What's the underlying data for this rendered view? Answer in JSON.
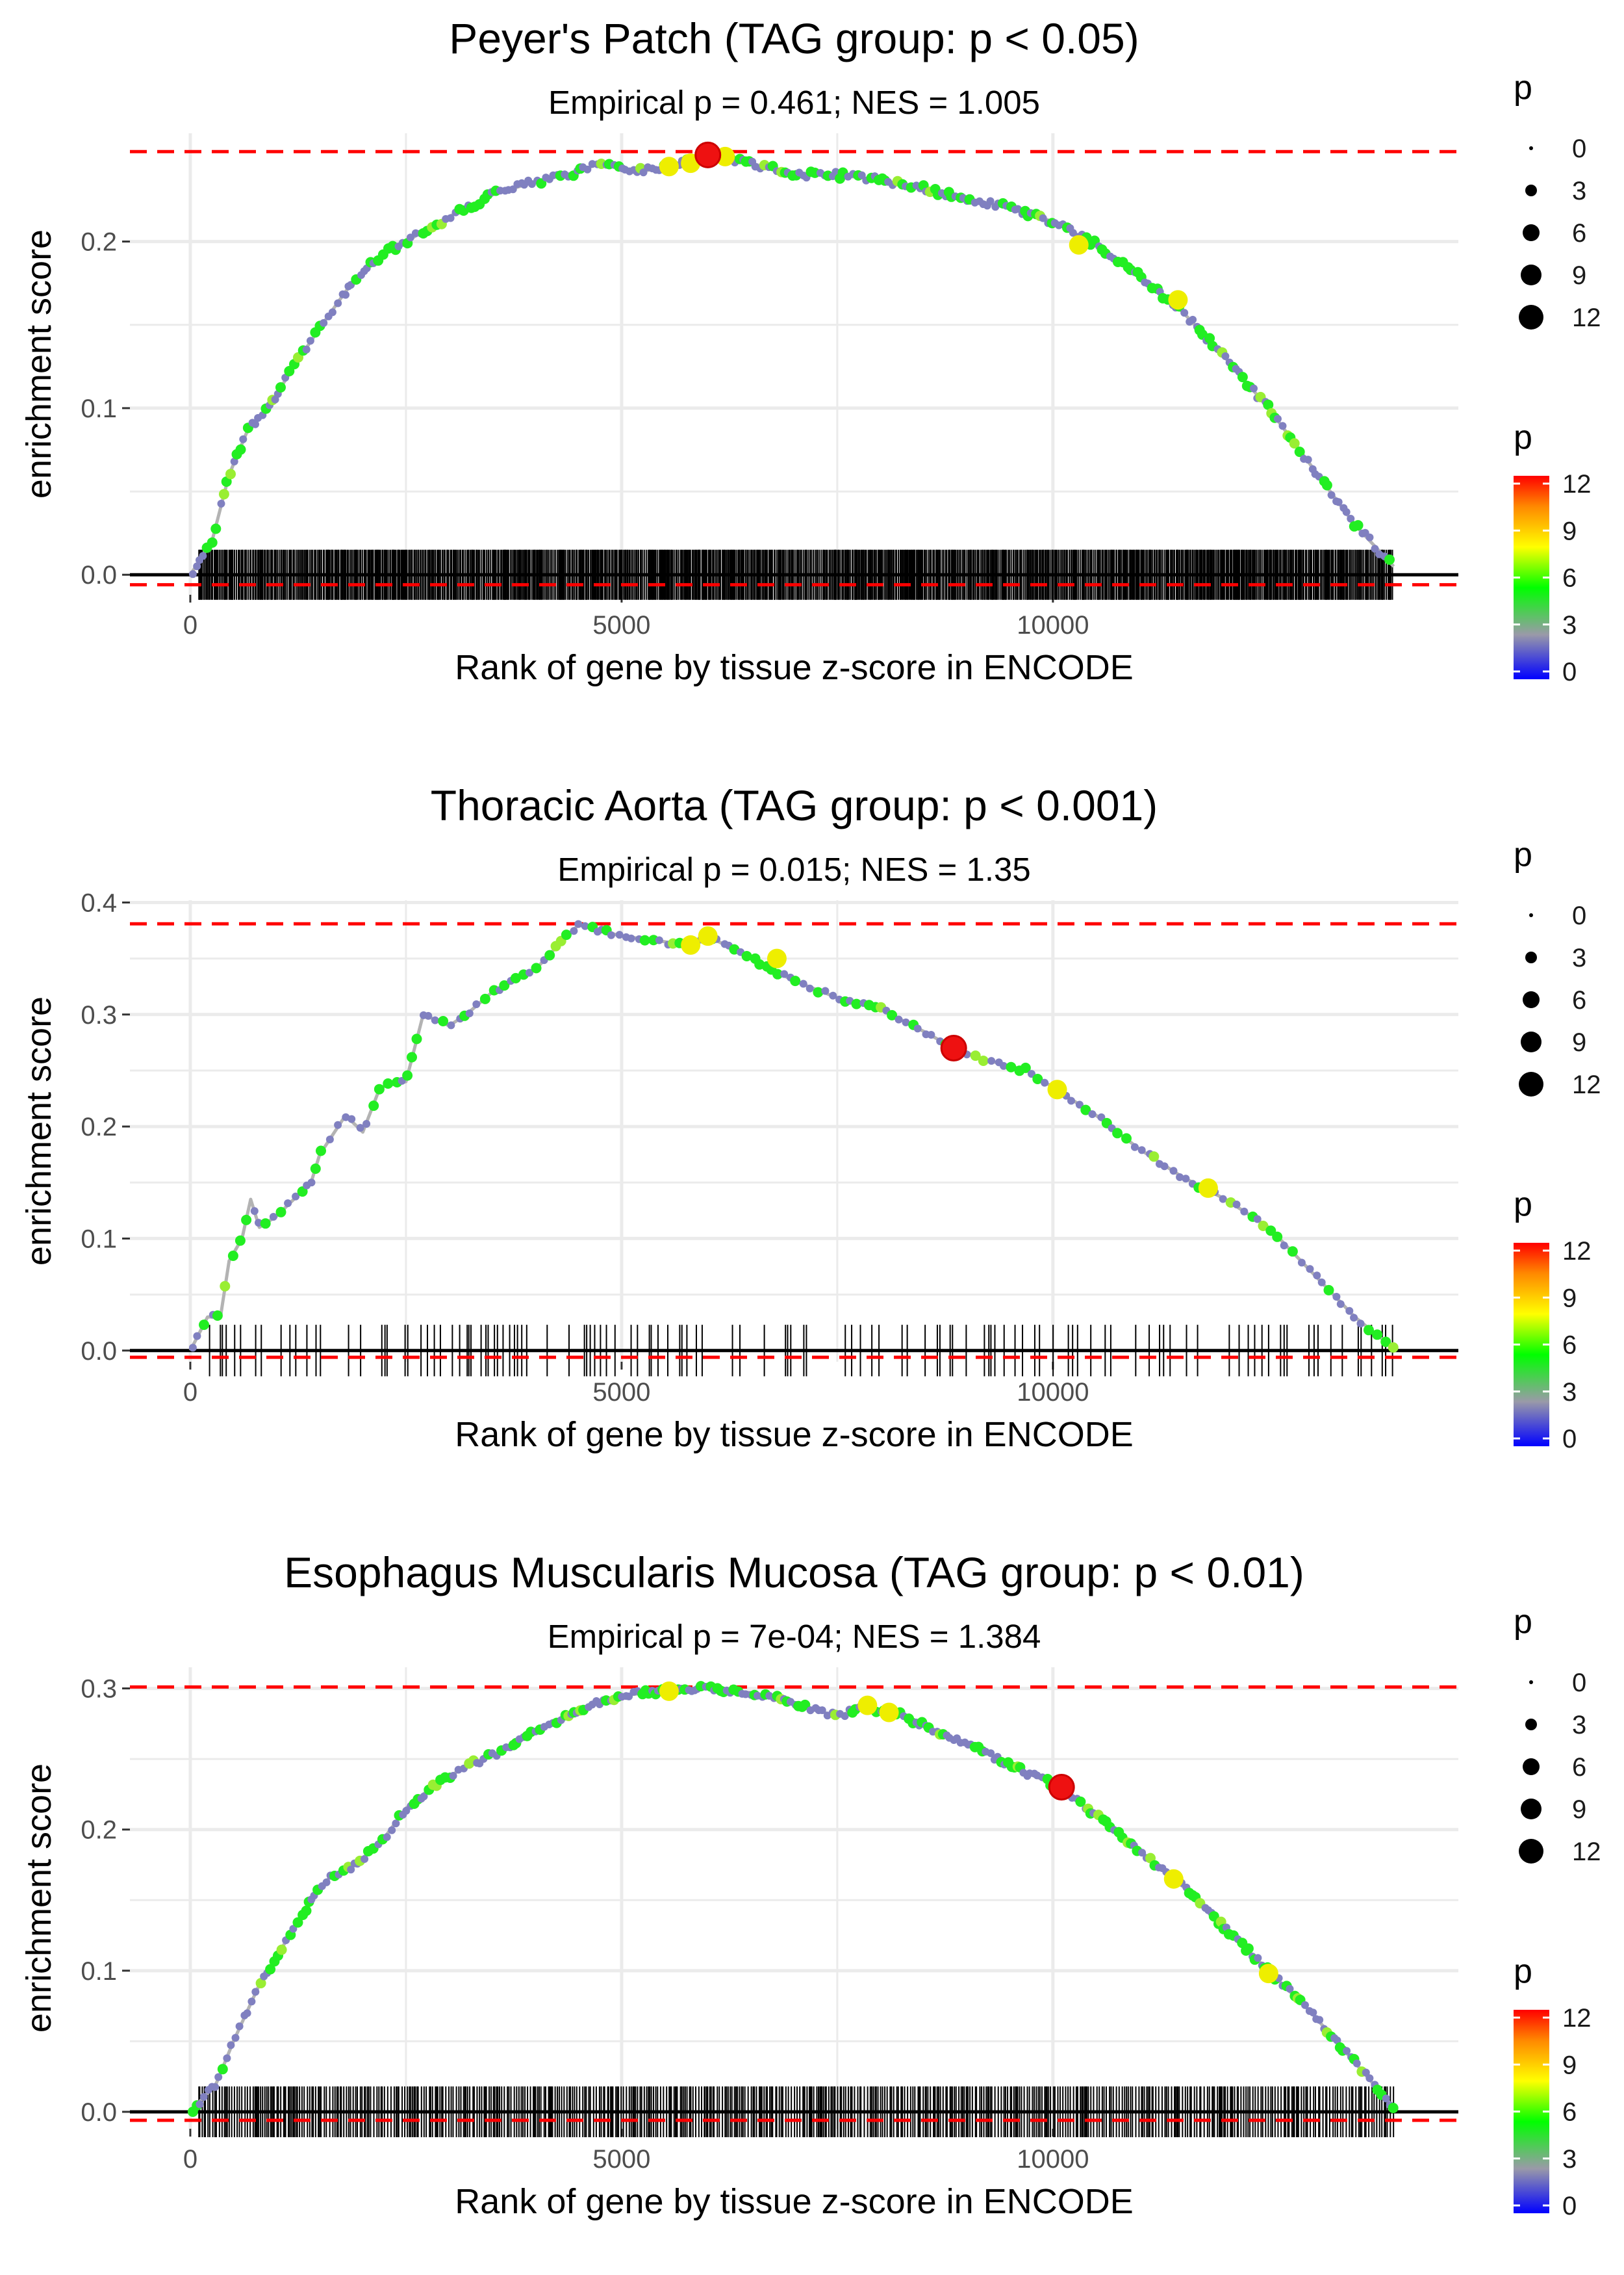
{
  "chart_data": [
    {
      "type": "line",
      "title": "Peyer's Patch (TAG group: p < 0.05)",
      "subtitle": "Empirical p = 0.461; NES = 1.005",
      "xlabel": "Rank of gene by tissue z-score in ENCODE",
      "ylabel": "enrichment score",
      "xlim": [
        -700,
        14700
      ],
      "ylim": [
        -0.012,
        0.265
      ],
      "xticks": [
        0,
        5000,
        10000
      ],
      "xtick_labels": [
        "0",
        "5000",
        "10000"
      ],
      "yticks": [
        0.0,
        0.1,
        0.2
      ],
      "ytick_labels": [
        "0.0",
        "0.1",
        "0.2"
      ],
      "hlines": [
        0.254,
        -0.006
      ],
      "rug": {
        "y_bottom": -0.015,
        "y_top": 0.015,
        "x_start": 100,
        "x_end": 13950,
        "density": "very dense"
      },
      "curve": [
        [
          0,
          0
        ],
        [
          250,
          0.02
        ],
        [
          450,
          0.06
        ],
        [
          650,
          0.085
        ],
        [
          900,
          0.1
        ],
        [
          1200,
          0.125
        ],
        [
          1500,
          0.148
        ],
        [
          1800,
          0.17
        ],
        [
          2100,
          0.188
        ],
        [
          2500,
          0.2
        ],
        [
          3000,
          0.215
        ],
        [
          3500,
          0.228
        ],
        [
          4000,
          0.236
        ],
        [
          4500,
          0.242
        ],
        [
          4750,
          0.247
        ],
        [
          5200,
          0.242
        ],
        [
          5600,
          0.245
        ],
        [
          6000,
          0.252
        ],
        [
          6500,
          0.247
        ],
        [
          7000,
          0.24
        ],
        [
          7500,
          0.24
        ],
        [
          8000,
          0.237
        ],
        [
          8500,
          0.232
        ],
        [
          9000,
          0.226
        ],
        [
          9500,
          0.22
        ],
        [
          10000,
          0.212
        ],
        [
          10500,
          0.198
        ],
        [
          11000,
          0.18
        ],
        [
          11500,
          0.158
        ],
        [
          12000,
          0.13
        ],
        [
          12500,
          0.1
        ],
        [
          13000,
          0.065
        ],
        [
          13500,
          0.03
        ],
        [
          13950,
          0.005
        ]
      ],
      "max_point": {
        "x": 6000,
        "y": 0.252,
        "p": 12
      },
      "yellow_points": [
        [
          5550,
          0.245
        ],
        [
          5800,
          0.247
        ],
        [
          6200,
          0.251
        ],
        [
          10300,
          0.198
        ],
        [
          11450,
          0.165
        ]
      ],
      "legend": {
        "title": "p",
        "sizes": [
          "0",
          "3",
          "6",
          "9",
          "12"
        ],
        "colorbar_labels": [
          "12",
          "9",
          "6",
          "3",
          "0"
        ]
      }
    },
    {
      "type": "line",
      "title": "Thoracic Aorta (TAG group: p < 0.001)",
      "subtitle": "Empirical p = 0.015; NES = 1.35",
      "xlabel": "Rank of gene by tissue z-score in ENCODE",
      "ylabel": "enrichment score",
      "xlim": [
        -700,
        14700
      ],
      "ylim": [
        -0.01,
        0.402
      ],
      "xticks": [
        0,
        5000,
        10000
      ],
      "xtick_labels": [
        "0",
        "5000",
        "10000"
      ],
      "yticks": [
        0.0,
        0.1,
        0.2,
        0.3,
        0.4
      ],
      "ytick_labels": [
        "0.0",
        "0.1",
        "0.2",
        "0.3",
        "0.4"
      ],
      "hlines": [
        0.381,
        -0.006
      ],
      "rug": {
        "y_bottom": -0.023,
        "y_top": 0.023,
        "x_start": 100,
        "x_end": 13950,
        "density": "sparse"
      },
      "curve": [
        [
          0,
          0
        ],
        [
          200,
          0.03
        ],
        [
          350,
          0.03
        ],
        [
          450,
          0.08
        ],
        [
          600,
          0.1
        ],
        [
          700,
          0.135
        ],
        [
          800,
          0.11
        ],
        [
          1000,
          0.12
        ],
        [
          1200,
          0.135
        ],
        [
          1400,
          0.15
        ],
        [
          1500,
          0.175
        ],
        [
          1800,
          0.21
        ],
        [
          2000,
          0.195
        ],
        [
          2200,
          0.235
        ],
        [
          2500,
          0.24
        ],
        [
          2700,
          0.3
        ],
        [
          3000,
          0.29
        ],
        [
          3200,
          0.3
        ],
        [
          3500,
          0.32
        ],
        [
          4000,
          0.34
        ],
        [
          4300,
          0.365
        ],
        [
          4500,
          0.38
        ],
        [
          5000,
          0.37
        ],
        [
          5500,
          0.365
        ],
        [
          5800,
          0.36
        ],
        [
          6000,
          0.37
        ],
        [
          6500,
          0.35
        ],
        [
          7000,
          0.33
        ],
        [
          7500,
          0.315
        ],
        [
          8000,
          0.305
        ],
        [
          8500,
          0.285
        ],
        [
          8850,
          0.27
        ],
        [
          9200,
          0.26
        ],
        [
          9700,
          0.25
        ],
        [
          10000,
          0.235
        ],
        [
          10500,
          0.21
        ],
        [
          11000,
          0.18
        ],
        [
          11500,
          0.155
        ],
        [
          12000,
          0.135
        ],
        [
          12500,
          0.11
        ],
        [
          13000,
          0.07
        ],
        [
          13500,
          0.03
        ],
        [
          13950,
          0.002
        ]
      ],
      "max_point": {
        "x": 8850,
        "y": 0.27,
        "p": 12
      },
      "yellow_points": [
        [
          5800,
          0.362
        ],
        [
          6000,
          0.37
        ],
        [
          6800,
          0.35
        ],
        [
          10050,
          0.233
        ],
        [
          11800,
          0.145
        ]
      ],
      "legend": {
        "title": "p",
        "sizes": [
          "0",
          "3",
          "6",
          "9",
          "12"
        ],
        "colorbar_labels": [
          "12",
          "9",
          "6",
          "3",
          "0"
        ]
      }
    },
    {
      "type": "line",
      "title": "Esophagus Muscularis Mucosa (TAG group: p < 0.01)",
      "subtitle": "Empirical p = 7e-04; NES = 1.384",
      "xlabel": "Rank of gene by tissue z-score in ENCODE",
      "ylabel": "enrichment score",
      "xlim": [
        -700,
        14700
      ],
      "ylim": [
        -0.012,
        0.315
      ],
      "xticks": [
        0,
        5000,
        10000
      ],
      "xtick_labels": [
        "0",
        "5000",
        "10000"
      ],
      "yticks": [
        0.0,
        0.1,
        0.2,
        0.3
      ],
      "ytick_labels": [
        "0.0",
        "0.1",
        "0.2",
        "0.3"
      ],
      "hlines": [
        0.301,
        -0.006
      ],
      "rug": {
        "y_bottom": -0.018,
        "y_top": 0.018,
        "x_start": 100,
        "x_end": 13950,
        "density": "dense"
      },
      "curve": [
        [
          0,
          0
        ],
        [
          300,
          0.02
        ],
        [
          500,
          0.05
        ],
        [
          800,
          0.09
        ],
        [
          1100,
          0.12
        ],
        [
          1400,
          0.15
        ],
        [
          1600,
          0.165
        ],
        [
          1800,
          0.17
        ],
        [
          2000,
          0.18
        ],
        [
          2200,
          0.19
        ],
        [
          2500,
          0.215
        ],
        [
          2800,
          0.23
        ],
        [
          3200,
          0.245
        ],
        [
          3600,
          0.255
        ],
        [
          4000,
          0.27
        ],
        [
          4500,
          0.285
        ],
        [
          5000,
          0.295
        ],
        [
          5500,
          0.298
        ],
        [
          6000,
          0.3
        ],
        [
          6500,
          0.297
        ],
        [
          7000,
          0.29
        ],
        [
          7500,
          0.28
        ],
        [
          7800,
          0.287
        ],
        [
          8200,
          0.282
        ],
        [
          8700,
          0.268
        ],
        [
          9200,
          0.255
        ],
        [
          9700,
          0.24
        ],
        [
          10100,
          0.23
        ],
        [
          10500,
          0.21
        ],
        [
          11000,
          0.185
        ],
        [
          11500,
          0.16
        ],
        [
          12000,
          0.13
        ],
        [
          12500,
          0.1
        ],
        [
          13000,
          0.07
        ],
        [
          13500,
          0.035
        ],
        [
          13950,
          0.003
        ]
      ],
      "max_point": {
        "x": 10100,
        "y": 0.23,
        "p": 12
      },
      "yellow_points": [
        [
          5550,
          0.298
        ],
        [
          7850,
          0.288
        ],
        [
          8100,
          0.283
        ],
        [
          11400,
          0.165
        ],
        [
          12500,
          0.098
        ]
      ],
      "legend": {
        "title": "p",
        "sizes": [
          "0",
          "3",
          "6",
          "9",
          "12"
        ],
        "colorbar_labels": [
          "12",
          "9",
          "6",
          "3",
          "0"
        ]
      }
    }
  ],
  "colors": {
    "hline": "#ff0000",
    "curve": "#b3b3b3",
    "point_low": "#8080c0",
    "point_mid": "#22ee22",
    "point_high": "#eeee00",
    "point_max": "#ee1111",
    "grid": "#ebebeb",
    "zero_line": "#000000",
    "rug": "#000000"
  }
}
